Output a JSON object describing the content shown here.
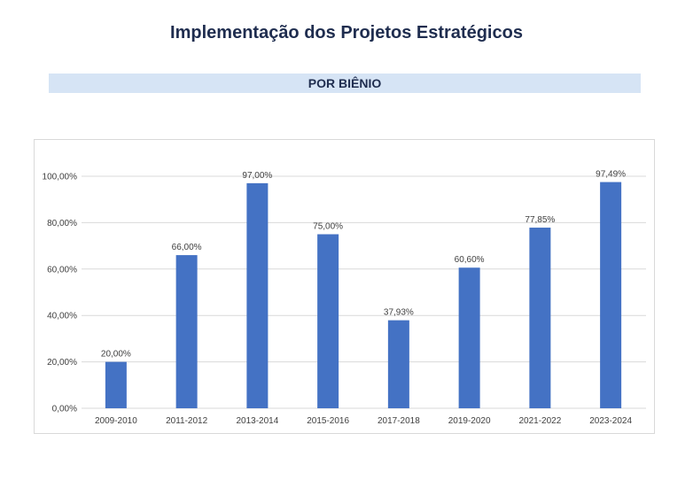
{
  "page": {
    "title": "Implementação dos Projetos Estratégicos",
    "section_label": "POR BIÊNIO"
  },
  "colors": {
    "bar": "#4472c4",
    "banner": "#d6e4f5",
    "grid": "#d9d9d9"
  },
  "chart_data": {
    "type": "bar",
    "categories": [
      "2009-2010",
      "2011-2012",
      "2013-2014",
      "2015-2016",
      "2017-2018",
      "2019-2020",
      "2021-2022",
      "2023-2024"
    ],
    "values": [
      20.0,
      66.0,
      97.0,
      75.0,
      37.93,
      60.6,
      77.85,
      97.49
    ],
    "data_labels": [
      "20,00%",
      "66,00%",
      "97,00%",
      "75,00%",
      "37,93%",
      "60,60%",
      "77,85%",
      "97,49%"
    ],
    "y_ticks": [
      0,
      20,
      40,
      60,
      80,
      100
    ],
    "y_tick_labels": [
      "0,00%",
      "20,00%",
      "40,00%",
      "60,00%",
      "80,00%",
      "100,00%"
    ],
    "ylim": [
      0,
      100
    ],
    "grid": true,
    "title": "",
    "xlabel": "",
    "ylabel": ""
  }
}
